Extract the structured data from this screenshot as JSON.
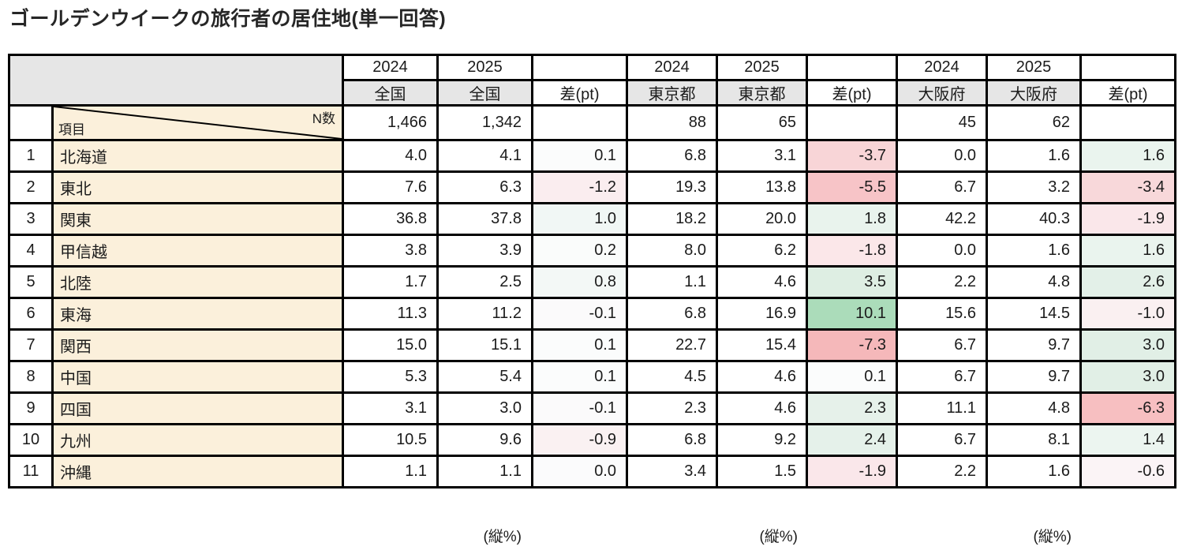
{
  "title": "ゴールデンウイークの旅行者の居住地(単一回答)",
  "header": {
    "year_2024": "2024",
    "year_2025": "2025",
    "diff_label": "差(pt)",
    "groups": [
      "全国",
      "東京都",
      "大阪府"
    ],
    "n_label": "N数",
    "item_label": "項目"
  },
  "n_counts": [
    "1,466",
    "1,342",
    "88",
    "65",
    "45",
    "62"
  ],
  "footer_note": "(縦%)",
  "colors": {
    "header_bg": "#E6E6E6",
    "item_bg": "#FBF0DB",
    "border": "#000000",
    "positive_max_green": "#ABDCBA",
    "negative_max_red": "#F5B8BA"
  },
  "rows": [
    {
      "no": "1",
      "name": "北海道",
      "zenkoku": [
        "4.0",
        "4.1",
        "0.1"
      ],
      "tokyo": [
        "6.8",
        "3.1",
        "-3.7"
      ],
      "osaka": [
        "0.0",
        "1.6",
        "1.6"
      ],
      "diff_bg": [
        "#FBFCFC",
        "#F8D5D7",
        "#EAF4EE"
      ]
    },
    {
      "no": "2",
      "name": "東北",
      "zenkoku": [
        "7.6",
        "6.3",
        "-1.2"
      ],
      "tokyo": [
        "19.3",
        "13.8",
        "-5.5"
      ],
      "osaka": [
        "6.7",
        "3.2",
        "-3.4"
      ],
      "diff_bg": [
        "#FAEDEF",
        "#F7C4C7",
        "#F8D8DA"
      ]
    },
    {
      "no": "3",
      "name": "関東",
      "zenkoku": [
        "36.8",
        "37.8",
        "1.0"
      ],
      "tokyo": [
        "18.2",
        "20.0",
        "1.8"
      ],
      "osaka": [
        "42.2",
        "40.3",
        "-1.9"
      ],
      "diff_bg": [
        "#F1F7F5",
        "#E9F3ED",
        "#FAE7EA"
      ]
    },
    {
      "no": "4",
      "name": "甲信越",
      "zenkoku": [
        "3.8",
        "3.9",
        "0.2"
      ],
      "tokyo": [
        "8.0",
        "6.2",
        "-1.8"
      ],
      "osaka": [
        "0.0",
        "1.6",
        "1.6"
      ],
      "diff_bg": [
        "#FAFCFB",
        "#FBE7E9",
        "#EAF4EE"
      ]
    },
    {
      "no": "5",
      "name": "北陸",
      "zenkoku": [
        "1.7",
        "2.5",
        "0.8"
      ],
      "tokyo": [
        "1.1",
        "4.6",
        "3.5"
      ],
      "osaka": [
        "2.2",
        "4.8",
        "2.6"
      ],
      "diff_bg": [
        "#F3F8F6",
        "#DEEEE3",
        "#E3F0E8"
      ]
    },
    {
      "no": "6",
      "name": "東海",
      "zenkoku": [
        "11.3",
        "11.2",
        "-0.1"
      ],
      "tokyo": [
        "6.8",
        "16.9",
        "10.1"
      ],
      "osaka": [
        "15.6",
        "14.5",
        "-1.0"
      ],
      "diff_bg": [
        "#FBFAFB",
        "#ABDCBA",
        "#FAF0F1"
      ]
    },
    {
      "no": "7",
      "name": "関西",
      "zenkoku": [
        "15.0",
        "15.1",
        "0.1"
      ],
      "tokyo": [
        "22.7",
        "15.4",
        "-7.3"
      ],
      "osaka": [
        "6.7",
        "9.7",
        "3.0"
      ],
      "diff_bg": [
        "#FBFCFC",
        "#F5B8BA",
        "#E1EFE6"
      ]
    },
    {
      "no": "8",
      "name": "中国",
      "zenkoku": [
        "5.3",
        "5.4",
        "0.1"
      ],
      "tokyo": [
        "4.5",
        "4.6",
        "0.1"
      ],
      "osaka": [
        "6.7",
        "9.7",
        "3.0"
      ],
      "diff_bg": [
        "#FBFCFC",
        "#FBFCFC",
        "#E1EFE6"
      ]
    },
    {
      "no": "9",
      "name": "四国",
      "zenkoku": [
        "3.1",
        "3.0",
        "-0.1"
      ],
      "tokyo": [
        "2.3",
        "4.6",
        "2.3"
      ],
      "osaka": [
        "11.1",
        "4.8",
        "-6.3"
      ],
      "diff_bg": [
        "#FBFAFB",
        "#E6F1EA",
        "#F7BFC1"
      ]
    },
    {
      "no": "10",
      "name": "九州",
      "zenkoku": [
        "10.5",
        "9.6",
        "-0.9"
      ],
      "tokyo": [
        "6.8",
        "9.2",
        "2.4"
      ],
      "osaka": [
        "6.7",
        "8.1",
        "1.4"
      ],
      "diff_bg": [
        "#FAF1F2",
        "#E5F1EA",
        "#ECF5F0"
      ]
    },
    {
      "no": "11",
      "name": "沖縄",
      "zenkoku": [
        "1.1",
        "1.1",
        "0.0"
      ],
      "tokyo": [
        "3.4",
        "1.5",
        "-1.9"
      ],
      "osaka": [
        "2.2",
        "1.6",
        "-0.6"
      ],
      "diff_bg": [
        "#FBFBFC",
        "#FAE7EA",
        "#FBF4F6"
      ]
    }
  ],
  "chart_data": {
    "type": "table",
    "title": "ゴールデンウイークの旅行者の居住地(単一回答)",
    "unit": "縦%",
    "column_groups": [
      "全国",
      "東京都",
      "大阪府"
    ],
    "columns": [
      "2024 全国",
      "2025 全国",
      "差(pt) 全国",
      "2024 東京都",
      "2025 東京都",
      "差(pt) 東京都",
      "2024 大阪府",
      "2025 大阪府",
      "差(pt) 大阪府"
    ],
    "n_counts": {
      "全国_2024": 1466,
      "全国_2025": 1342,
      "東京都_2024": 88,
      "東京都_2025": 65,
      "大阪府_2024": 45,
      "大阪府_2025": 62
    },
    "items": [
      "北海道",
      "東北",
      "関東",
      "甲信越",
      "北陸",
      "東海",
      "関西",
      "中国",
      "四国",
      "九州",
      "沖縄"
    ],
    "series": [
      {
        "name": "全国 2024",
        "values": [
          4.0,
          7.6,
          36.8,
          3.8,
          1.7,
          11.3,
          15.0,
          5.3,
          3.1,
          10.5,
          1.1
        ]
      },
      {
        "name": "全国 2025",
        "values": [
          4.1,
          6.3,
          37.8,
          3.9,
          2.5,
          11.2,
          15.1,
          5.4,
          3.0,
          9.6,
          1.1
        ]
      },
      {
        "name": "全国 差(pt)",
        "values": [
          0.1,
          -1.2,
          1.0,
          0.2,
          0.8,
          -0.1,
          0.1,
          0.1,
          -0.1,
          -0.9,
          0.0
        ]
      },
      {
        "name": "東京都 2024",
        "values": [
          6.8,
          19.3,
          18.2,
          8.0,
          1.1,
          6.8,
          22.7,
          4.5,
          2.3,
          6.8,
          3.4
        ]
      },
      {
        "name": "東京都 2025",
        "values": [
          3.1,
          13.8,
          20.0,
          6.2,
          4.6,
          16.9,
          15.4,
          4.6,
          4.6,
          9.2,
          1.5
        ]
      },
      {
        "name": "東京都 差(pt)",
        "values": [
          -3.7,
          -5.5,
          1.8,
          -1.8,
          3.5,
          10.1,
          -7.3,
          0.1,
          2.3,
          2.4,
          -1.9
        ]
      },
      {
        "name": "大阪府 2024",
        "values": [
          0.0,
          6.7,
          42.2,
          0.0,
          2.2,
          15.6,
          6.7,
          6.7,
          11.1,
          6.7,
          2.2
        ]
      },
      {
        "name": "大阪府 2025",
        "values": [
          1.6,
          3.2,
          40.3,
          1.6,
          4.8,
          14.5,
          9.7,
          9.7,
          4.8,
          8.1,
          1.6
        ]
      },
      {
        "name": "大阪府 差(pt)",
        "values": [
          1.6,
          -3.4,
          -1.9,
          1.6,
          2.6,
          -1.0,
          3.0,
          3.0,
          -6.3,
          1.4,
          -0.6
        ]
      }
    ],
    "conditional_format": "差(pt)列: 正の値は緑(最大10.1)、負の値は赤(最小-7.3)の濃淡"
  }
}
